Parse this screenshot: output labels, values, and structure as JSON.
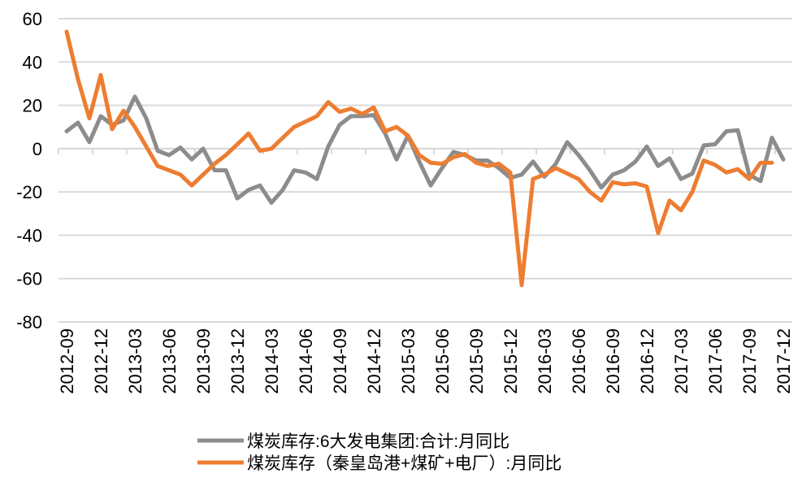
{
  "chart_data": {
    "type": "line",
    "title": "",
    "xlabel": "",
    "ylabel": "",
    "ylim": [
      -80,
      60
    ],
    "yticks": [
      60,
      40,
      20,
      0,
      -20,
      -40,
      -60,
      -80
    ],
    "grid": true,
    "legend_position": "bottom",
    "x_start": "2012-09",
    "x_end": "2017-12",
    "xtick_labels": [
      "2012-09",
      "2012-12",
      "2013-03",
      "2013-06",
      "2013-09",
      "2013-12",
      "2014-03",
      "2014-06",
      "2014-09",
      "2014-12",
      "2015-03",
      "2015-06",
      "2015-09",
      "2015-12",
      "2016-03",
      "2016-06",
      "2016-09",
      "2016-12",
      "2017-03",
      "2017-06",
      "2017-09",
      "2017-12"
    ],
    "series": [
      {
        "name": "煤炭库存:6大发电集团:合计:月同比",
        "color": "#8c8c8c",
        "values": [
          8,
          12,
          3,
          15,
          11,
          13,
          24,
          14,
          -1,
          -3,
          0.5,
          -5,
          0,
          -10,
          -10,
          -23,
          -19,
          -17,
          -25,
          -19,
          -10,
          -11,
          -14,
          1,
          11,
          15,
          15,
          15.5,
          7,
          -5,
          6,
          -6,
          -17,
          -9,
          -1.5,
          -3,
          -5.5,
          -5.5,
          -9,
          -13.5,
          -12,
          -6,
          -13,
          -7,
          3,
          -3,
          -10,
          -18,
          -12,
          -10,
          -6,
          1,
          -8,
          -4.5,
          -14,
          -11.5,
          1.5,
          2,
          8,
          8.5,
          -12,
          -15,
          5,
          -5
        ]
      },
      {
        "name": "煤炭库存（秦皇岛港+煤矿+电厂）:月同比",
        "color": "#ed7d31",
        "values": [
          54,
          32,
          14,
          34,
          9,
          17.5,
          10,
          1,
          -8,
          -10,
          -12,
          -17,
          -12,
          -7,
          -3,
          2,
          7,
          -1,
          0,
          5,
          10,
          12.5,
          15,
          21.5,
          17,
          18.5,
          16,
          19,
          8,
          10,
          6,
          -3,
          -6.5,
          -7,
          -4,
          -2.5,
          -6.5,
          -8,
          -7,
          -11,
          -63,
          -14,
          -12,
          -9,
          -11.5,
          -14,
          -20,
          -24,
          -15.5,
          -16.5,
          -16,
          -17.5,
          -39,
          -24,
          -28.5,
          -20,
          -5.5,
          -7.5,
          -11,
          -9.5,
          -14,
          -6.5,
          -6.5
        ]
      }
    ]
  }
}
